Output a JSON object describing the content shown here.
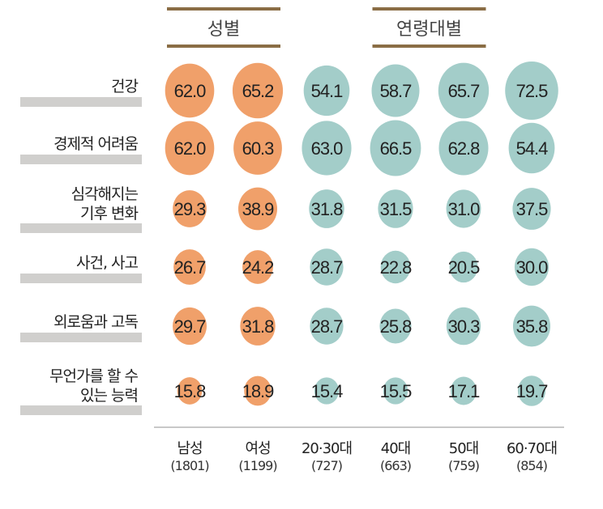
{
  "chart_data": {
    "type": "bubble-table",
    "groups": [
      {
        "label": "성별",
        "columns": [
          0,
          1
        ]
      },
      {
        "label": "연령대별",
        "columns": [
          2,
          3,
          4,
          5
        ]
      }
    ],
    "columns": [
      {
        "label": "남성",
        "n": "(1801)",
        "color": "#f0a06a"
      },
      {
        "label": "여성",
        "n": "(1199)",
        "color": "#f0a06a"
      },
      {
        "label": "20·30대",
        "n": "(727)",
        "color": "#a3cdc9"
      },
      {
        "label": "40대",
        "n": "(663)",
        "color": "#a3cdc9"
      },
      {
        "label": "50대",
        "n": "(759)",
        "color": "#a3cdc9"
      },
      {
        "label": "60·70대",
        "n": "(854)",
        "color": "#a3cdc9"
      }
    ],
    "rows": [
      {
        "label": "건강",
        "values": [
          62.0,
          65.2,
          54.1,
          58.7,
          65.7,
          72.5
        ]
      },
      {
        "label": "경제적 어려움",
        "values": [
          62.0,
          60.3,
          63.0,
          66.5,
          62.8,
          54.4
        ]
      },
      {
        "label": "심각해지는\n기후 변화",
        "values": [
          29.3,
          38.9,
          31.8,
          31.5,
          31.0,
          37.5
        ]
      },
      {
        "label": "사건, 사고",
        "values": [
          26.7,
          24.2,
          28.7,
          22.8,
          20.5,
          30.0
        ]
      },
      {
        "label": "외로움과 고독",
        "values": [
          29.7,
          31.8,
          28.7,
          25.8,
          30.3,
          35.8
        ]
      },
      {
        "label": "무언가를 할 수\n있는 능력",
        "values": [
          15.8,
          18.9,
          15.4,
          15.5,
          17.1,
          19.7
        ]
      }
    ],
    "colors": {
      "female_male": "#f0a06a",
      "age": "#a3cdc9",
      "group_rule": "#8a6d45",
      "label_bar": "#d0cfcd"
    }
  }
}
